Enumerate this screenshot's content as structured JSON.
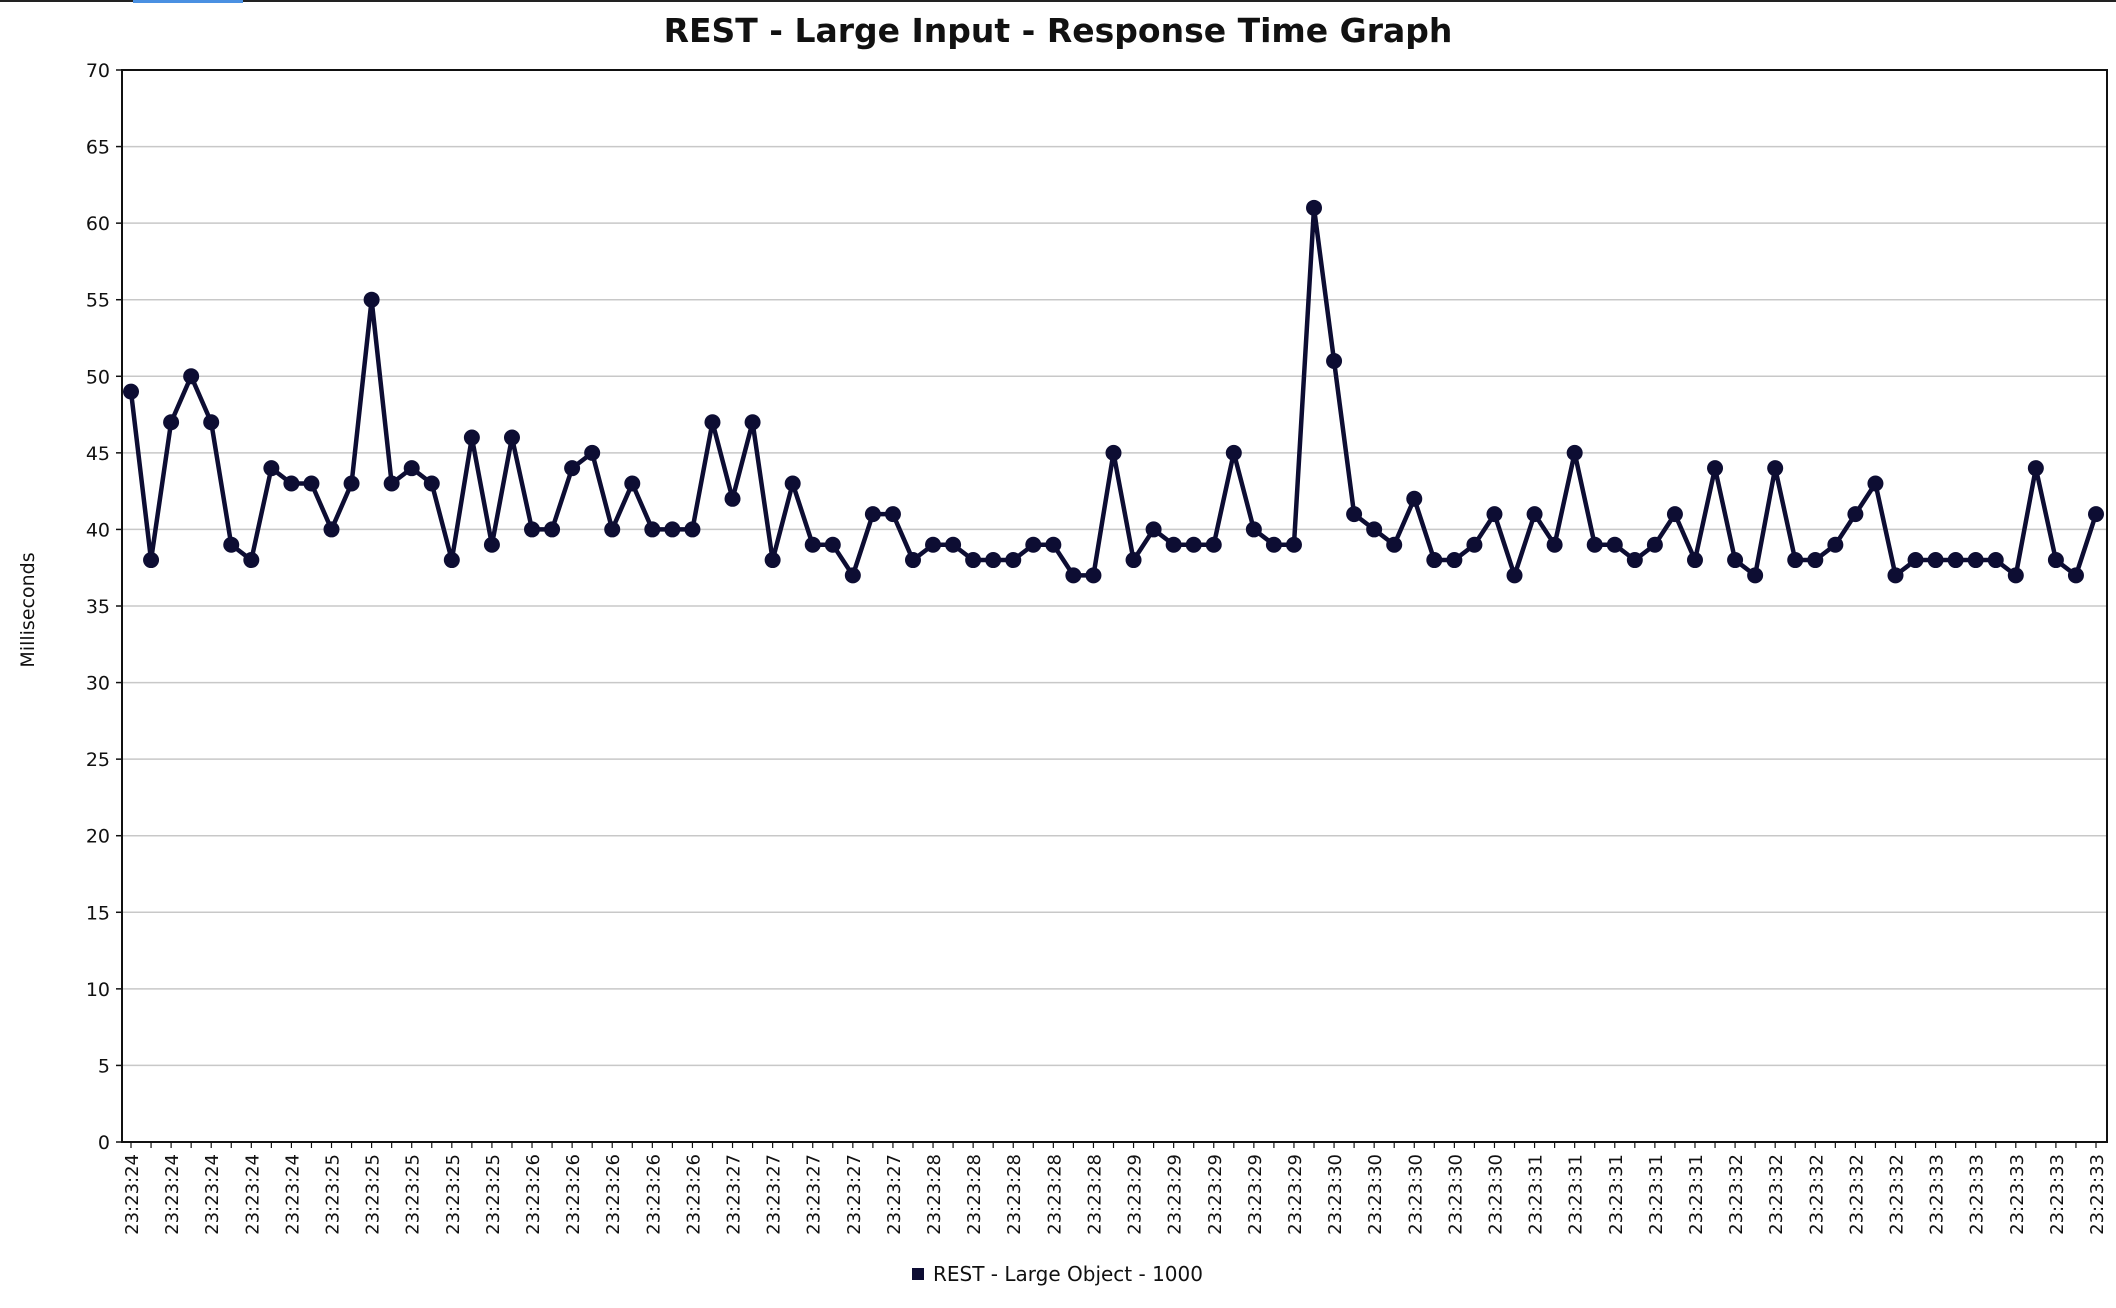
{
  "chart_data": {
    "type": "line",
    "title": "REST - Large Input - Response Time Graph",
    "ylabel": "Milliseconds",
    "xlabel": "",
    "ylim": [
      0,
      70
    ],
    "yticks": [
      0,
      5,
      10,
      15,
      20,
      25,
      30,
      35,
      40,
      45,
      50,
      55,
      60,
      65,
      70
    ],
    "grid": true,
    "legend_position": "bottom-center",
    "line_color": "#0d0d33",
    "x_tick_labels": [
      "23:23:24",
      "23:23:24",
      "23:23:24",
      "23:23:24",
      "23:23:24",
      "23:23:25",
      "23:23:25",
      "23:23:25",
      "23:23:25",
      "23:23:25",
      "23:23:26",
      "23:23:26",
      "23:23:26",
      "23:23:26",
      "23:23:26",
      "23:23:27",
      "23:23:27",
      "23:23:27",
      "23:23:27",
      "23:23:27",
      "23:23:28",
      "23:23:28",
      "23:23:28",
      "23:23:28",
      "23:23:28",
      "23:23:29",
      "23:23:29",
      "23:23:29",
      "23:23:29",
      "23:23:29",
      "23:23:30",
      "23:23:30",
      "23:23:30",
      "23:23:30",
      "23:23:30",
      "23:23:31",
      "23:23:31",
      "23:23:31",
      "23:23:31",
      "23:23:31",
      "23:23:32",
      "23:23:32",
      "23:23:32",
      "23:23:32",
      "23:23:32",
      "23:23:33",
      "23:23:33",
      "23:23:33",
      "23:23:33",
      "23:23:33"
    ],
    "series": [
      {
        "name": "REST - Large Object - 1000",
        "values": [
          49,
          38,
          47,
          50,
          47,
          39,
          38,
          44,
          43,
          43,
          40,
          43,
          55,
          43,
          44,
          43,
          38,
          46,
          39,
          46,
          40,
          40,
          44,
          45,
          40,
          43,
          40,
          40,
          40,
          47,
          42,
          47,
          38,
          43,
          39,
          39,
          37,
          41,
          41,
          38,
          39,
          39,
          38,
          38,
          38,
          39,
          39,
          37,
          37,
          45,
          38,
          40,
          39,
          39,
          39,
          45,
          40,
          39,
          39,
          61,
          51,
          41,
          40,
          39,
          42,
          38,
          38,
          39,
          41,
          37,
          41,
          39,
          45,
          39,
          39,
          38,
          39,
          41,
          38,
          44,
          38,
          37,
          44,
          38,
          38,
          39,
          41,
          43,
          37,
          38,
          38,
          38,
          38,
          38,
          37,
          44,
          38,
          37,
          41
        ]
      }
    ]
  }
}
